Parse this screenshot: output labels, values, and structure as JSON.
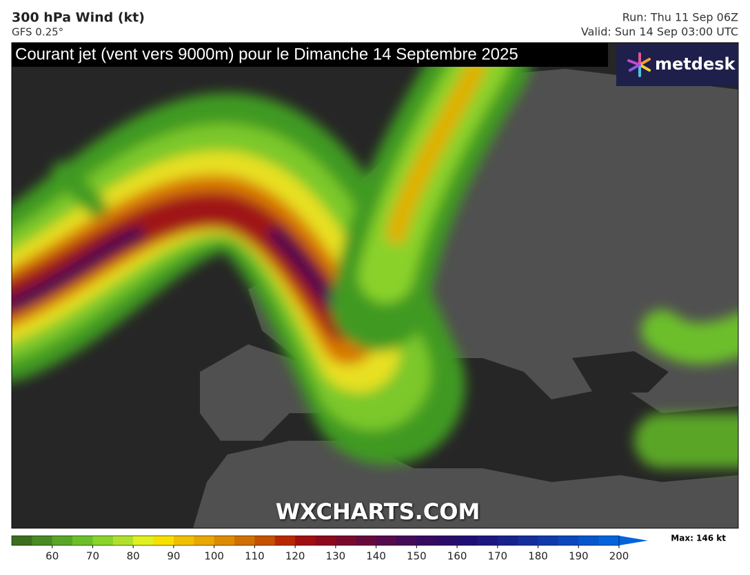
{
  "header": {
    "title": "300 hPa Wind (kt)",
    "model": "GFS 0.25°",
    "run": "Run: Thu 11 Sep 06Z",
    "valid": "Valid: Sun 14 Sep 03:00 UTC"
  },
  "banner": "Courant jet (vent vers 9000m) pour le Dimanche 14 Septembre 2025",
  "logo": "metdesk",
  "watermark": "WXCHARTS.COM",
  "legend": {
    "range": [
      50,
      200
    ],
    "ticks": [
      60,
      70,
      80,
      90,
      100,
      110,
      120,
      130,
      140,
      150,
      160,
      170,
      180,
      190,
      200
    ],
    "colors": [
      "#3a6e1e",
      "#4a8a22",
      "#5aa528",
      "#6cbf2a",
      "#8ad22c",
      "#b0e02c",
      "#e0f020",
      "#f6e000",
      "#f0c000",
      "#e8a800",
      "#dc8c00",
      "#d07000",
      "#c45000",
      "#b82800",
      "#a01010",
      "#8c0a1c",
      "#7a0a2c",
      "#660a3c",
      "#540a4c",
      "#440a58",
      "#360a60",
      "#2a0c68",
      "#200e74",
      "#1c1880",
      "#18228c",
      "#142e9c",
      "#103aac",
      "#0c48bc",
      "#0856cc",
      "#0464dc"
    ],
    "max_label": "Max: 146 kt"
  }
}
